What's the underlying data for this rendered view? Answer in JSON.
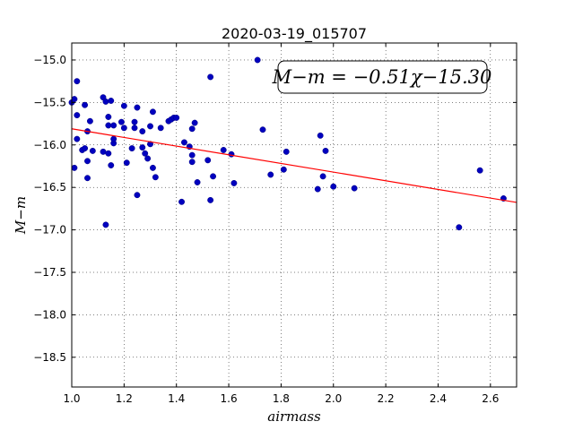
{
  "chart_data": {
    "type": "scatter",
    "title": "2020-03-19_015707",
    "xlabel": "airmass",
    "ylabel": "M−m",
    "xlim": [
      1.0,
      2.7
    ],
    "ylim": [
      -18.85,
      -14.8
    ],
    "y_inverted": true,
    "grid": true,
    "x_ticks": [
      1.0,
      1.2,
      1.4,
      1.6,
      1.8,
      2.0,
      2.2,
      2.4,
      2.6
    ],
    "x_tick_labels": [
      "1.0",
      "1.2",
      "1.4",
      "1.6",
      "1.8",
      "2.0",
      "2.2",
      "2.4",
      "2.6"
    ],
    "y_ticks": [
      -15.0,
      -15.5,
      -16.0,
      -16.5,
      -17.0,
      -17.5,
      -18.0,
      -18.5
    ],
    "y_tick_labels": [
      "−15.0",
      "−15.5",
      "−16.0",
      "−16.5",
      "−17.0",
      "−17.5",
      "−18.0",
      "−18.5"
    ],
    "annotation": "M−m = −0.51χ−15.30",
    "marker_color": "#0000bf",
    "fit": {
      "slope": -0.51,
      "intercept": -15.3,
      "color": "#ff0000"
    },
    "points": [
      [
        1.0,
        -15.5
      ],
      [
        1.01,
        -15.46
      ],
      [
        1.01,
        -16.27
      ],
      [
        1.02,
        -15.25
      ],
      [
        1.02,
        -15.65
      ],
      [
        1.02,
        -15.93
      ],
      [
        1.04,
        -16.06
      ],
      [
        1.05,
        -15.53
      ],
      [
        1.05,
        -16.04
      ],
      [
        1.06,
        -15.84
      ],
      [
        1.06,
        -16.19
      ],
      [
        1.06,
        -16.39
      ],
      [
        1.07,
        -15.72
      ],
      [
        1.08,
        -16.07
      ],
      [
        1.12,
        -15.44
      ],
      [
        1.12,
        -16.08
      ],
      [
        1.13,
        -15.49
      ],
      [
        1.13,
        -16.94
      ],
      [
        1.14,
        -15.67
      ],
      [
        1.14,
        -15.77
      ],
      [
        1.14,
        -16.1
      ],
      [
        1.15,
        -15.48
      ],
      [
        1.15,
        -16.24
      ],
      [
        1.16,
        -15.98
      ],
      [
        1.16,
        -15.93
      ],
      [
        1.16,
        -15.77
      ],
      [
        1.19,
        -15.73
      ],
      [
        1.2,
        -15.54
      ],
      [
        1.2,
        -15.8
      ],
      [
        1.21,
        -16.21
      ],
      [
        1.23,
        -16.04
      ],
      [
        1.24,
        -15.73
      ],
      [
        1.24,
        -15.8
      ],
      [
        1.25,
        -15.56
      ],
      [
        1.25,
        -16.59
      ],
      [
        1.27,
        -15.84
      ],
      [
        1.27,
        -16.03
      ],
      [
        1.28,
        -16.1
      ],
      [
        1.29,
        -16.16
      ],
      [
        1.3,
        -15.78
      ],
      [
        1.3,
        -15.99
      ],
      [
        1.31,
        -16.27
      ],
      [
        1.31,
        -15.61
      ],
      [
        1.32,
        -16.38
      ],
      [
        1.34,
        -15.8
      ],
      [
        1.37,
        -15.72
      ],
      [
        1.38,
        -15.7
      ],
      [
        1.39,
        -15.68
      ],
      [
        1.4,
        -15.68
      ],
      [
        1.42,
        -16.67
      ],
      [
        1.43,
        -15.97
      ],
      [
        1.45,
        -16.02
      ],
      [
        1.46,
        -16.12
      ],
      [
        1.46,
        -16.2
      ],
      [
        1.46,
        -15.81
      ],
      [
        1.47,
        -15.74
      ],
      [
        1.48,
        -16.44
      ],
      [
        1.52,
        -16.18
      ],
      [
        1.53,
        -15.2
      ],
      [
        1.53,
        -16.65
      ],
      [
        1.54,
        -16.37
      ],
      [
        1.58,
        -16.06
      ],
      [
        1.61,
        -16.11
      ],
      [
        1.62,
        -16.45
      ],
      [
        1.71,
        -15.0
      ],
      [
        1.73,
        -15.82
      ],
      [
        1.76,
        -16.35
      ],
      [
        1.81,
        -16.29
      ],
      [
        1.82,
        -16.08
      ],
      [
        1.94,
        -16.52
      ],
      [
        1.95,
        -15.89
      ],
      [
        1.96,
        -16.37
      ],
      [
        1.97,
        -16.07
      ],
      [
        2.0,
        -16.49
      ],
      [
        2.08,
        -16.51
      ],
      [
        2.48,
        -16.97
      ],
      [
        2.56,
        -16.3
      ],
      [
        2.65,
        -16.63
      ]
    ]
  }
}
